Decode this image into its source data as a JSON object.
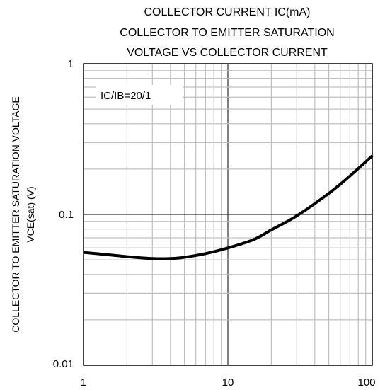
{
  "chart_data": {
    "type": "line",
    "title_lines": [
      "COLLECTOR CURRENT  IC(mA)",
      "COLLECTOR TO EMITTER SATURATION",
      "VOLTAGE VS COLLECTOR CURRENT"
    ],
    "ylabel_lines": [
      "COLLECTOR TO EMITTER SATURATION VOLTAGE",
      "VCE(sat) (V)"
    ],
    "annotation": "IC/IB=20/1",
    "x_scale": "log",
    "y_scale": "log",
    "xlim": [
      1,
      100
    ],
    "ylim": [
      0.01,
      1
    ],
    "x_ticks": [
      {
        "value": 1,
        "label": "1"
      },
      {
        "value": 10,
        "label": "10"
      },
      {
        "value": 100,
        "label": "100"
      }
    ],
    "y_ticks": [
      {
        "value": 0.01,
        "label": "0.01"
      },
      {
        "value": 0.1,
        "label": "0.1"
      },
      {
        "value": 1,
        "label": "1"
      }
    ],
    "grid": true,
    "series": [
      {
        "color": "#000000",
        "points": [
          {
            "x": 1,
            "y": 0.056
          },
          {
            "x": 1.5,
            "y": 0.054
          },
          {
            "x": 2,
            "y": 0.0525
          },
          {
            "x": 3,
            "y": 0.051
          },
          {
            "x": 4,
            "y": 0.051
          },
          {
            "x": 5,
            "y": 0.052
          },
          {
            "x": 7,
            "y": 0.055
          },
          {
            "x": 10,
            "y": 0.06
          },
          {
            "x": 15,
            "y": 0.068
          },
          {
            "x": 20,
            "y": 0.079
          },
          {
            "x": 30,
            "y": 0.098
          },
          {
            "x": 50,
            "y": 0.138
          },
          {
            "x": 70,
            "y": 0.18
          },
          {
            "x": 100,
            "y": 0.245
          }
        ]
      }
    ]
  }
}
